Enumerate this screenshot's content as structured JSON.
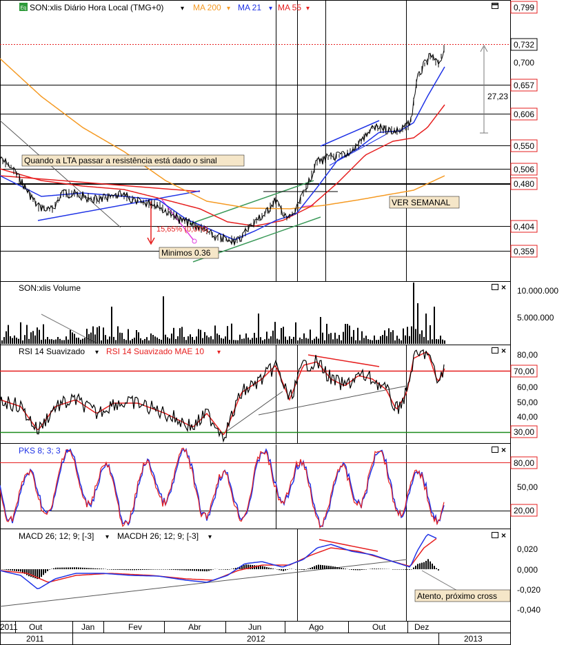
{
  "colors": {
    "price": "#000000",
    "ma200": "#f59a23",
    "ma21": "#1e32e6",
    "ma55": "#e61e1e",
    "channel_green": "#3c9a5a",
    "triangle_blue": "#1e32e6",
    "triangle_red": "#e61e1e",
    "magenta": "#e040e0",
    "volume": "#000000",
    "rsi": "#000000",
    "rsi_ma": "#e61e1e",
    "line_70": "#e61e1e",
    "line_30": "#1a8a1a",
    "pks_k": "#1e32e6",
    "pks_d": "#e61e1e",
    "macd": "#1e32e6",
    "signal": "#e61e1e",
    "price_box_border": "#e61e1e",
    "annotation_bg": "#f5e6c8"
  },
  "price_panel": {
    "badge": "Eq",
    "title": "SON:xlis Diário Hora Local (TMG+0)",
    "legend": [
      {
        "label": "MA 200",
        "color": "#f59a23"
      },
      {
        "label": "MA 21",
        "color": "#1e32e6"
      },
      {
        "label": "MA 55",
        "color": "#e61e1e"
      }
    ],
    "axis_labels": [
      "0,799",
      "0,732",
      "0,700",
      "0,657",
      "0,606",
      "0,550",
      "0,506",
      "0,480",
      "0,404",
      "0,359"
    ],
    "annotation_lta": "Quando a LTA passar a resistência está dado o sinal",
    "annotation_semanal": "VER SEMANAL",
    "annotation_minimos": "Minimos 0.36",
    "annotation_pct": "15,65% (0,070)",
    "annotation_range": "27,23"
  },
  "volume_panel": {
    "title": "SON:xlis Volume",
    "axis_labels": [
      "10.000.000",
      "5.000.000"
    ]
  },
  "rsi_panel": {
    "title": "RSI 14 Suavizado",
    "title2": "RSI 14 Suavizado MAE 10",
    "axis_labels": [
      "80,00",
      "70,00",
      "60,00",
      "50,00",
      "40,00",
      "30,00"
    ]
  },
  "pks_panel": {
    "title": "PKS 8; 3; 3",
    "axis_labels": [
      "80,00",
      "50,00",
      "20,00"
    ]
  },
  "macd_panel": {
    "title": "MACD 26; 12; 9; [-3]",
    "title2": "MACDH 26; 12; 9; [-3]",
    "axis_labels": [
      "0,020",
      "0,000",
      "-0,020",
      "-0,040"
    ],
    "annotation": "Atento, próximo cross"
  },
  "time_axis": {
    "months": [
      "2011",
      "Out",
      "Jan",
      "Fev",
      "Abr",
      "Jun",
      "Ago",
      "Out",
      "Dez"
    ],
    "years": [
      "2011",
      "2012",
      "2013"
    ]
  },
  "chart_data": {
    "type": "line",
    "symbol": "SON:xlis",
    "price_levels": [
      0.799,
      0.732,
      0.7,
      0.657,
      0.606,
      0.55,
      0.506,
      0.48,
      0.404,
      0.359
    ],
    "price_keypoints": [
      {
        "x": "Set 2011",
        "y": 0.52
      },
      {
        "x": "Out 2011",
        "y": 0.47
      },
      {
        "x": "Nov 2011",
        "y": 0.42
      },
      {
        "x": "Jan 2012",
        "y": 0.455
      },
      {
        "x": "Mar 2012",
        "y": 0.445
      },
      {
        "x": "Abr 2012",
        "y": 0.41
      },
      {
        "x": "Mai 2012",
        "y": 0.362
      },
      {
        "x": "Jun 2012",
        "y": 0.405
      },
      {
        "x": "Jul 2012",
        "y": 0.43
      },
      {
        "x": "Ago 2012",
        "y": 0.52
      },
      {
        "x": "Set 2012",
        "y": 0.545
      },
      {
        "x": "Out 2012",
        "y": 0.575
      },
      {
        "x": "Nov 2012",
        "y": 0.58
      },
      {
        "x": "Dez 2012",
        "y": 0.732
      }
    ],
    "rsi_levels": [
      70,
      30
    ],
    "pks_levels": [
      80,
      20
    ]
  }
}
